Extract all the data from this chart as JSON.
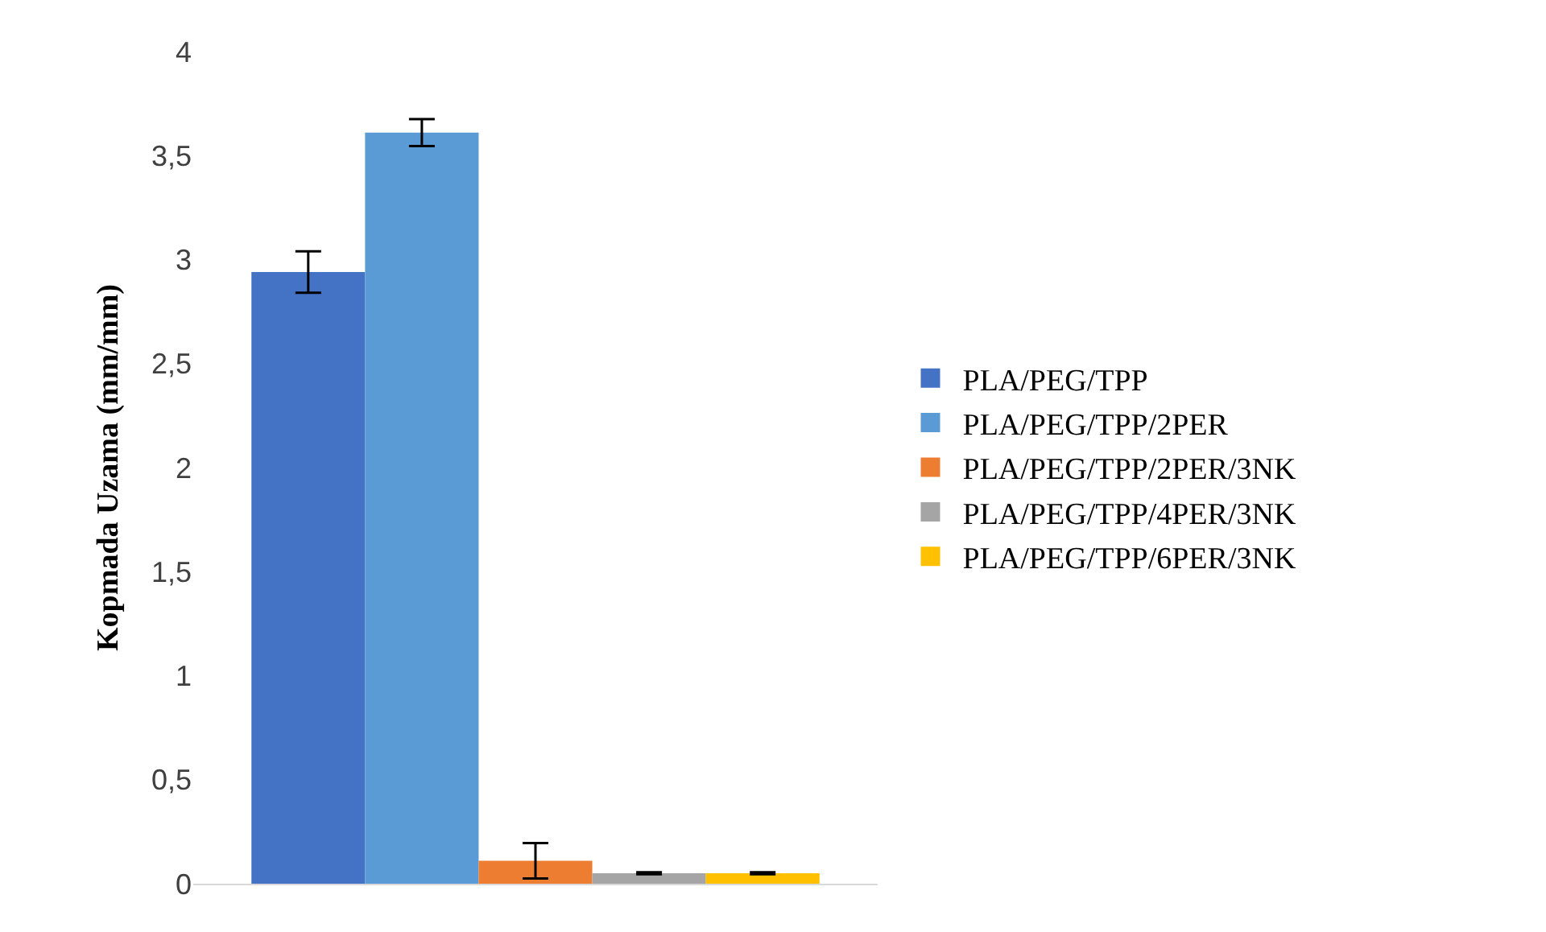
{
  "chart_data": {
    "type": "bar",
    "ylabel": "Kopmada Uzama (mm/mm)",
    "categories": [
      null
    ],
    "series": [
      {
        "name": "PLA/PEG/TPP",
        "color": "#4472c4",
        "values": [
          2.94
        ],
        "errors": [
          0.1
        ]
      },
      {
        "name": "PLA/PEG/TPP/2PER",
        "color": "#5b9bd5",
        "values": [
          3.61
        ],
        "errors": [
          0.065
        ]
      },
      {
        "name": "PLA/PEG/TPP/2PER/3NK",
        "color": "#ed7d31",
        "values": [
          0.11
        ],
        "errors": [
          0.085
        ]
      },
      {
        "name": "PLA/PEG/TPP/4PER/3NK",
        "color": "#a5a5a5",
        "values": [
          0.05
        ],
        "errors": [
          0.005
        ]
      },
      {
        "name": "PLA/PEG/TPP/6PER/3NK",
        "color": "#ffc000",
        "values": [
          0.05
        ],
        "errors": [
          0.005
        ]
      }
    ],
    "ylim": [
      0,
      4
    ],
    "yticks": [
      0,
      {
        "value": 0.5,
        "label": "0,5"
      },
      1,
      {
        "value": 1.5,
        "label": "1,5"
      },
      2,
      {
        "value": 2.5,
        "label": "2,5"
      },
      3,
      {
        "value": 3.5,
        "label": "3,5"
      },
      4
    ],
    "grid": false,
    "legend": "right"
  }
}
